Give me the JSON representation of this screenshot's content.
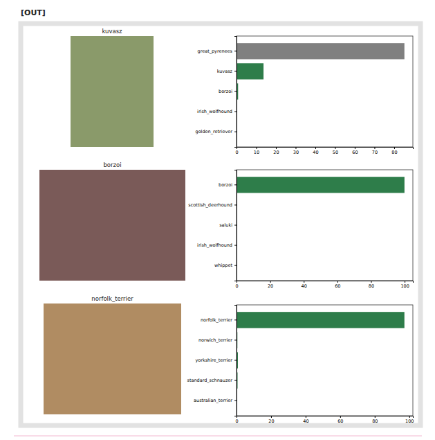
{
  "label": "[OUT]",
  "chart_data": [
    {
      "type": "bar",
      "orientation": "horizontal",
      "title": "kuvasz",
      "categories": [
        "great_pyrenees",
        "kuvasz",
        "borzoi",
        "irish_wolfhound",
        "golden_retriever"
      ],
      "values": [
        85.2,
        13.7,
        0.8,
        0.1,
        0.05
      ],
      "colors": [
        "#808080",
        "#2e7d4a",
        "#2e7d4a",
        "#2e7d4a",
        "#2e7d4a"
      ],
      "xlim": [
        0,
        89.5
      ],
      "xticks": [
        0,
        10,
        20,
        30,
        40,
        50,
        60,
        70,
        80
      ]
    },
    {
      "type": "bar",
      "orientation": "horizontal",
      "title": "borzoi",
      "categories": [
        "borzoi",
        "scottish_deerhound",
        "saluki",
        "irish_wolfhound",
        "whippet"
      ],
      "values": [
        99.9,
        0.05,
        0.03,
        0.02,
        0.01
      ],
      "color": "#2e7d4a",
      "xlim": [
        0,
        104.9
      ],
      "xticks": [
        0,
        20,
        40,
        60,
        80,
        100
      ]
    },
    {
      "type": "bar",
      "orientation": "horizontal",
      "title": "norfolk_terrier",
      "categories": [
        "norfolk_terrier",
        "norwich_terrier",
        "yorkshire_terrier",
        "standard_schnauzer",
        "australian_terrier"
      ],
      "values": [
        97.2,
        0.5,
        0.8,
        0.6,
        0.2
      ],
      "color": "#2e7d4a",
      "xlim": [
        0,
        102.1
      ],
      "xticks": [
        0,
        20,
        40,
        60,
        80,
        100
      ]
    }
  ]
}
